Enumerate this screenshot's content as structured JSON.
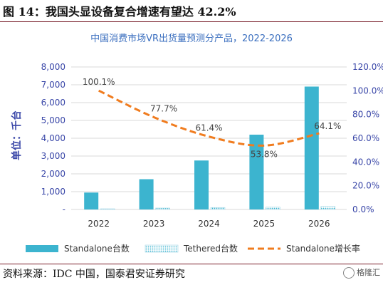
{
  "figure": {
    "title": "图 14：我国头显设备复合增速有望达 42.2%",
    "source": "资料来源：IDC 中国，国泰君安证券研究",
    "watermark": "格隆汇"
  },
  "chart_data": {
    "type": "bar+line",
    "title": "中国消费市场VR出货量预测分产品，2022-2026",
    "ylabel": "单位：千台",
    "categories": [
      "2022",
      "2023",
      "2024",
      "2025",
      "2026"
    ],
    "ylim": [
      0,
      8000
    ],
    "y_ticks": [
      "-",
      "1,000",
      "2,000",
      "3,000",
      "4,000",
      "5,000",
      "6,000",
      "7,000",
      "8,000"
    ],
    "y2lim": [
      0,
      120
    ],
    "y2_ticks": [
      "0.0%",
      "20.0%",
      "40.0%",
      "60.0%",
      "80.0%",
      "100.0%",
      "120.0%"
    ],
    "series": [
      {
        "name": "Standalone台数",
        "type": "bar",
        "color": "#3cb4cf",
        "values": [
          950,
          1700,
          2750,
          4200,
          6900
        ]
      },
      {
        "name": "Tethered台数",
        "type": "bar",
        "pattern": "dotted",
        "color": "#9ed4e4",
        "values": [
          40,
          80,
          110,
          130,
          170
        ]
      },
      {
        "name": "Standalone增长率",
        "type": "line",
        "axis": "right",
        "style": "dashed",
        "color": "#f07c1f",
        "values": [
          100.1,
          77.7,
          61.4,
          53.8,
          64.1
        ],
        "labels": [
          "100.1%",
          "77.7%",
          "61.4%",
          "53.8%",
          "64.1%"
        ]
      }
    ],
    "grid": true,
    "legend_position": "bottom"
  }
}
